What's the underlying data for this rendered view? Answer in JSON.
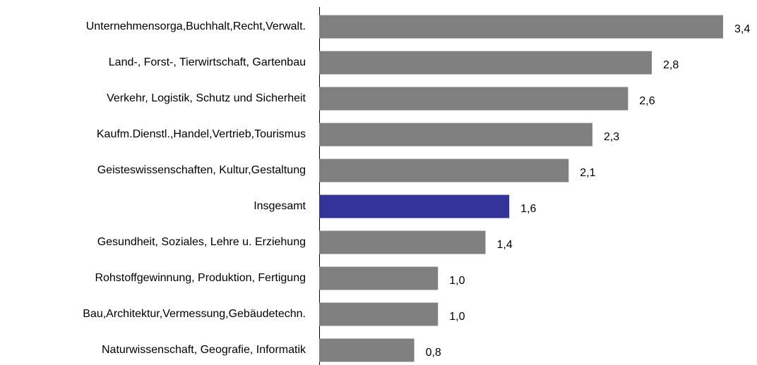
{
  "chart_data": {
    "type": "bar",
    "orientation": "horizontal",
    "categories": [
      "Unternehmensorga,Buchhalt,Recht,Verwalt.",
      "Land-, Forst-, Tierwirtschaft, Gartenbau",
      "Verkehr, Logistik, Schutz und Sicherheit",
      "Kaufm.Dienstl.,Handel,Vertrieb,Tourismus",
      "Geisteswissenschaften, Kultur,Gestaltung",
      "Insgesamt",
      "Gesundheit, Soziales, Lehre u. Erziehung",
      "Rohstoffgewinnung, Produktion, Fertigung",
      "Bau,Architektur,Vermessung,Gebäudetechn.",
      "Naturwissenschaft, Geografie, Informatik"
    ],
    "values": [
      3.4,
      2.8,
      2.6,
      2.3,
      2.1,
      1.6,
      1.4,
      1.0,
      1.0,
      0.8
    ],
    "value_labels": [
      "3,4",
      "2,8",
      "2,6",
      "2,3",
      "2,1",
      "1,6",
      "1,4",
      "1,0",
      "1,0",
      "0,8"
    ],
    "colors": [
      "#808080",
      "#808080",
      "#808080",
      "#808080",
      "#808080",
      "#333399",
      "#808080",
      "#808080",
      "#808080",
      "#808080"
    ],
    "xlim": [
      0,
      3.4
    ]
  }
}
